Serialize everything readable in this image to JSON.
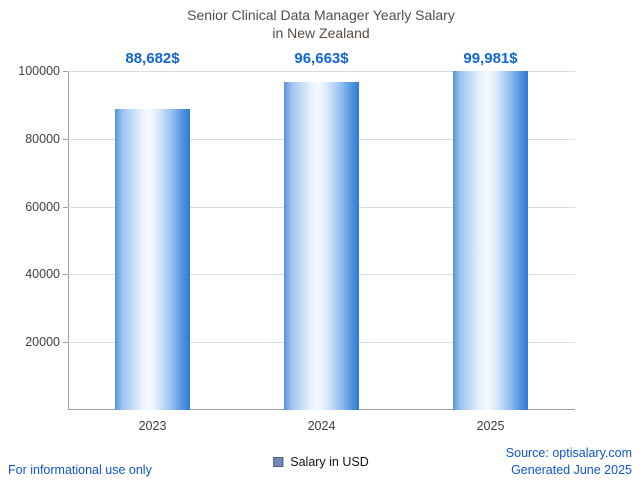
{
  "title": {
    "line1": "Senior Clinical Data Manager Yearly Salary",
    "line2": "in New Zealand"
  },
  "chart_data": {
    "type": "bar",
    "title": "Senior Clinical Data Manager Yearly Salary in New Zealand",
    "categories": [
      "2023",
      "2024",
      "2025"
    ],
    "values": [
      88682,
      96663,
      99981
    ],
    "value_labels": [
      "88,682$",
      "96,663$",
      "99,981$"
    ],
    "xlabel": "",
    "ylabel": "",
    "ylim": [
      0,
      100000
    ],
    "yticks": [
      20000,
      40000,
      60000,
      80000,
      100000
    ],
    "grid": true,
    "bar_color": "#2e7bd4",
    "legend_position": "bottom-center"
  },
  "legend": {
    "label": "Salary in USD",
    "swatch_color": "#7289bd"
  },
  "footer": {
    "left": "For informational use only",
    "source": "Source: optisalary.com",
    "generated": "Generated June 2025"
  },
  "colors": {
    "value_label": "#1266d3",
    "footer_text": "#1155cc",
    "title_text": "#564c45",
    "axis": "#9e9e9e",
    "gridline": "#dcdcdc"
  }
}
